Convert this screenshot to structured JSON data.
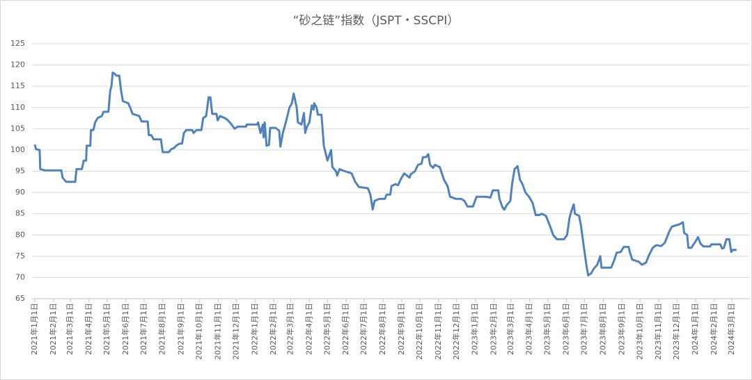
{
  "chart_data": {
    "type": "line",
    "title": "“砂之链”指数（JSPT・SSCPI）",
    "x": [
      "2021-01-01",
      "2021-01-03",
      "2021-01-09",
      "2021-01-10",
      "2021-01-18",
      "2021-02-14",
      "2021-02-16",
      "2021-02-22",
      "2021-03-09",
      "2021-03-11",
      "2021-03-20",
      "2021-03-23",
      "2021-03-27",
      "2021-03-28",
      "2021-04-03",
      "2021-04-04",
      "2021-04-08",
      "2021-04-11",
      "2021-04-15",
      "2021-04-22",
      "2021-04-25",
      "2021-05-03",
      "2021-05-06",
      "2021-05-08",
      "2021-05-10",
      "2021-05-13",
      "2021-05-16",
      "2021-05-21",
      "2021-05-24",
      "2021-05-27",
      "2021-06-05",
      "2021-06-08",
      "2021-06-12",
      "2021-06-23",
      "2021-06-27",
      "2021-07-07",
      "2021-07-09",
      "2021-07-13",
      "2021-07-17",
      "2021-07-29",
      "2021-08-01",
      "2021-08-11",
      "2021-08-15",
      "2021-08-20",
      "2021-08-23",
      "2021-08-29",
      "2021-09-02",
      "2021-09-05",
      "2021-09-09",
      "2021-09-19",
      "2021-09-21",
      "2021-09-26",
      "2021-10-04",
      "2021-10-07",
      "2021-10-12",
      "2021-10-16",
      "2021-10-19",
      "2021-10-22",
      "2021-10-29",
      "2021-10-31",
      "2021-11-04",
      "2021-11-12",
      "2021-11-17",
      "2021-11-23",
      "2021-11-28",
      "2021-12-03",
      "2021-12-17",
      "2021-12-18",
      "2022-01-04",
      "2022-01-06",
      "2022-01-10",
      "2022-01-14",
      "2022-01-15",
      "2022-01-17",
      "2022-01-20",
      "2022-01-24",
      "2022-01-26",
      "2022-02-04",
      "2022-02-10",
      "2022-02-12",
      "2022-02-16",
      "2022-02-21",
      "2022-02-27",
      "2022-03-03",
      "2022-03-06",
      "2022-03-11",
      "2022-03-13",
      "2022-03-19",
      "2022-03-23",
      "2022-03-25",
      "2022-03-28",
      "2022-04-01",
      "2022-04-05",
      "2022-04-08",
      "2022-04-09",
      "2022-04-13",
      "2022-04-15",
      "2022-04-21",
      "2022-04-25",
      "2022-05-01",
      "2022-05-07",
      "2022-05-09",
      "2022-05-15",
      "2022-05-17",
      "2022-05-21",
      "2022-05-24",
      "2022-05-30",
      "2022-06-10",
      "2022-06-16",
      "2022-06-22",
      "2022-07-07",
      "2022-07-11",
      "2022-07-15",
      "2022-07-18",
      "2022-07-26",
      "2022-08-04",
      "2022-08-07",
      "2022-08-13",
      "2022-08-15",
      "2022-08-22",
      "2022-08-26",
      "2022-08-30",
      "2022-09-05",
      "2022-09-14",
      "2022-09-16",
      "2022-09-23",
      "2022-09-28",
      "2022-10-04",
      "2022-10-06",
      "2022-10-11",
      "2022-10-15",
      "2022-10-18",
      "2022-10-23",
      "2022-10-26",
      "2022-11-03",
      "2022-11-10",
      "2022-11-16",
      "2022-11-20",
      "2022-11-30",
      "2022-12-09",
      "2022-12-14",
      "2022-12-19",
      "2022-12-28",
      "2023-01-03",
      "2023-01-18",
      "2023-01-26",
      "2023-01-30",
      "2023-02-08",
      "2023-02-10",
      "2023-02-15",
      "2023-02-18",
      "2023-02-22",
      "2023-02-28",
      "2023-03-03",
      "2023-03-07",
      "2023-03-12",
      "2023-03-16",
      "2023-03-20",
      "2023-03-25",
      "2023-03-31",
      "2023-04-06",
      "2023-04-11",
      "2023-04-17",
      "2023-04-21",
      "2023-04-28",
      "2023-05-05",
      "2023-05-10",
      "2023-05-16",
      "2023-05-28",
      "2023-06-02",
      "2023-06-06",
      "2023-06-10",
      "2023-06-13",
      "2023-06-15",
      "2023-06-22",
      "2023-06-25",
      "2023-06-29",
      "2023-07-04",
      "2023-07-07",
      "2023-07-12",
      "2023-07-16",
      "2023-07-22",
      "2023-07-27",
      "2023-07-29",
      "2023-08-14",
      "2023-08-19",
      "2023-08-23",
      "2023-08-30",
      "2023-09-04",
      "2023-09-12",
      "2023-09-14",
      "2023-09-18",
      "2023-09-29",
      "2023-10-04",
      "2023-10-11",
      "2023-10-15",
      "2023-10-22",
      "2023-10-28",
      "2023-11-05",
      "2023-11-11",
      "2023-11-19",
      "2023-11-23",
      "2023-12-05",
      "2023-12-11",
      "2023-12-13",
      "2023-12-18",
      "2023-12-20",
      "2023-12-25",
      "2024-01-01",
      "2024-01-05",
      "2024-01-09",
      "2024-01-14",
      "2024-01-25",
      "2024-01-27",
      "2024-02-11",
      "2024-02-14",
      "2024-02-17",
      "2024-02-21",
      "2024-02-26",
      "2024-02-29",
      "2024-03-03",
      "2024-03-09"
    ],
    "series": [
      {
        "name": "JSPT・SSCPI",
        "color": "#4f81bd",
        "values": [
          101.3,
          100.2,
          100,
          95.5,
          95.2,
          95.2,
          93.5,
          92.5,
          92.5,
          95.5,
          95.5,
          97.5,
          97.5,
          101,
          101,
          104.7,
          104.7,
          106.5,
          107.5,
          108,
          109,
          109,
          114,
          115,
          118.2,
          118,
          117.5,
          117.5,
          114,
          111.5,
          111,
          110,
          108.5,
          108,
          106.7,
          106.7,
          103.5,
          103.5,
          102.5,
          102.5,
          99.5,
          99.5,
          100.2,
          100.5,
          101,
          101.5,
          101.5,
          104,
          104.7,
          104.7,
          104,
          104.7,
          104.7,
          107.5,
          108,
          112.4,
          112.4,
          108.5,
          108.5,
          107,
          108,
          107.5,
          107,
          106,
          105,
          105.5,
          105.5,
          106,
          106,
          106.5,
          104,
          106,
          103,
          106.5,
          101,
          101.2,
          105.2,
          105.2,
          104.5,
          100.8,
          104,
          106.5,
          110,
          111,
          113.3,
          110,
          106.5,
          106,
          108.7,
          104,
          105.5,
          106.5,
          110.5,
          109.5,
          111,
          110,
          108.3,
          108.3,
          101,
          97.5,
          100,
          96,
          95,
          94,
          95.5,
          95.3,
          95,
          94.5,
          92.5,
          91.3,
          91,
          89.5,
          86,
          88,
          88.5,
          88.5,
          89.5,
          89.5,
          91.5,
          92,
          91.7,
          93,
          94.5,
          93.5,
          94.3,
          95,
          96.5,
          96.8,
          98.3,
          98.3,
          99,
          96.5,
          95.8,
          96.5,
          96,
          93,
          91.5,
          89,
          88.5,
          88.5,
          88,
          86.7,
          86.7,
          89,
          89,
          88.8,
          90.5,
          90.5,
          88.5,
          86.5,
          86,
          87,
          88,
          92,
          95.5,
          96.2,
          93,
          92,
          90,
          89,
          87.5,
          84.7,
          84.7,
          85,
          84.5,
          82,
          80,
          79,
          79,
          80,
          84,
          86,
          87.2,
          85,
          84.5,
          82.3,
          78,
          73,
          70.5,
          71,
          72,
          73,
          75,
          72.3,
          72.3,
          74,
          75.8,
          76,
          77.2,
          77.2,
          76,
          74.2,
          73.7,
          73,
          73.5,
          75,
          77,
          77.6,
          77.4,
          78.2,
          81,
          82,
          82.5,
          83,
          80.5,
          80,
          77,
          77,
          78.5,
          79.5,
          78,
          77.3,
          77.3,
          77.8,
          77.8,
          76.8,
          77,
          79,
          79,
          76,
          76.5,
          76.5
        ]
      }
    ],
    "xlim": [
      "2021-01-01",
      "2024-03-31"
    ],
    "xticks": [
      {
        "value": "2021-01-01",
        "label": "2021年1月1日"
      },
      {
        "value": "2021-02-01",
        "label": "2021年2月1日"
      },
      {
        "value": "2021-03-01",
        "label": "2021年3月1日"
      },
      {
        "value": "2021-04-01",
        "label": "2021年4月1日"
      },
      {
        "value": "2021-05-01",
        "label": "2021年5月1日"
      },
      {
        "value": "2021-06-01",
        "label": "2021年6月1日"
      },
      {
        "value": "2021-07-01",
        "label": "2021年7月1日"
      },
      {
        "value": "2021-08-01",
        "label": "2021年8月1日"
      },
      {
        "value": "2021-09-01",
        "label": "2021年9月1日"
      },
      {
        "value": "2021-10-01",
        "label": "2021年10月1日"
      },
      {
        "value": "2021-11-01",
        "label": "2021年11月1日"
      },
      {
        "value": "2021-12-01",
        "label": "2021年12月1日"
      },
      {
        "value": "2022-01-01",
        "label": "2022年1月1日"
      },
      {
        "value": "2022-02-01",
        "label": "2022年2月1日"
      },
      {
        "value": "2022-03-01",
        "label": "2022年3月1日"
      },
      {
        "value": "2022-04-01",
        "label": "2022年4月1日"
      },
      {
        "value": "2022-05-01",
        "label": "2022年5月1日"
      },
      {
        "value": "2022-06-01",
        "label": "2022年6月1日"
      },
      {
        "value": "2022-07-01",
        "label": "2022年7月1日"
      },
      {
        "value": "2022-08-01",
        "label": "2022年8月1日"
      },
      {
        "value": "2022-09-01",
        "label": "2022年9月1日"
      },
      {
        "value": "2022-10-01",
        "label": "2022年10月1日"
      },
      {
        "value": "2022-11-01",
        "label": "2022年11月1日"
      },
      {
        "value": "2022-12-01",
        "label": "2022年12月1日"
      },
      {
        "value": "2023-01-01",
        "label": "2023年1月1日"
      },
      {
        "value": "2023-02-01",
        "label": "2023年2月1日"
      },
      {
        "value": "2023-03-01",
        "label": "2023年3月1日"
      },
      {
        "value": "2023-04-01",
        "label": "2023年4月1日"
      },
      {
        "value": "2023-05-01",
        "label": "2023年5月1日"
      },
      {
        "value": "2023-06-01",
        "label": "2023年6月1日"
      },
      {
        "value": "2023-07-01",
        "label": "2023年7月1日"
      },
      {
        "value": "2023-08-01",
        "label": "2023年8月1日"
      },
      {
        "value": "2023-09-01",
        "label": "2023年9月1日"
      },
      {
        "value": "2023-10-01",
        "label": "2023年10月1日"
      },
      {
        "value": "2023-11-01",
        "label": "2023年11月1日"
      },
      {
        "value": "2023-12-01",
        "label": "2023年12月1日"
      },
      {
        "value": "2024-01-01",
        "label": "2024年1月1日"
      },
      {
        "value": "2024-02-01",
        "label": "2024年2月1日"
      },
      {
        "value": "2024-03-01",
        "label": "2024年3月1日"
      }
    ],
    "ylim": [
      65,
      125
    ],
    "yticks": [
      65,
      70,
      75,
      80,
      85,
      90,
      95,
      100,
      105,
      110,
      115,
      120,
      125
    ],
    "grid": true
  }
}
